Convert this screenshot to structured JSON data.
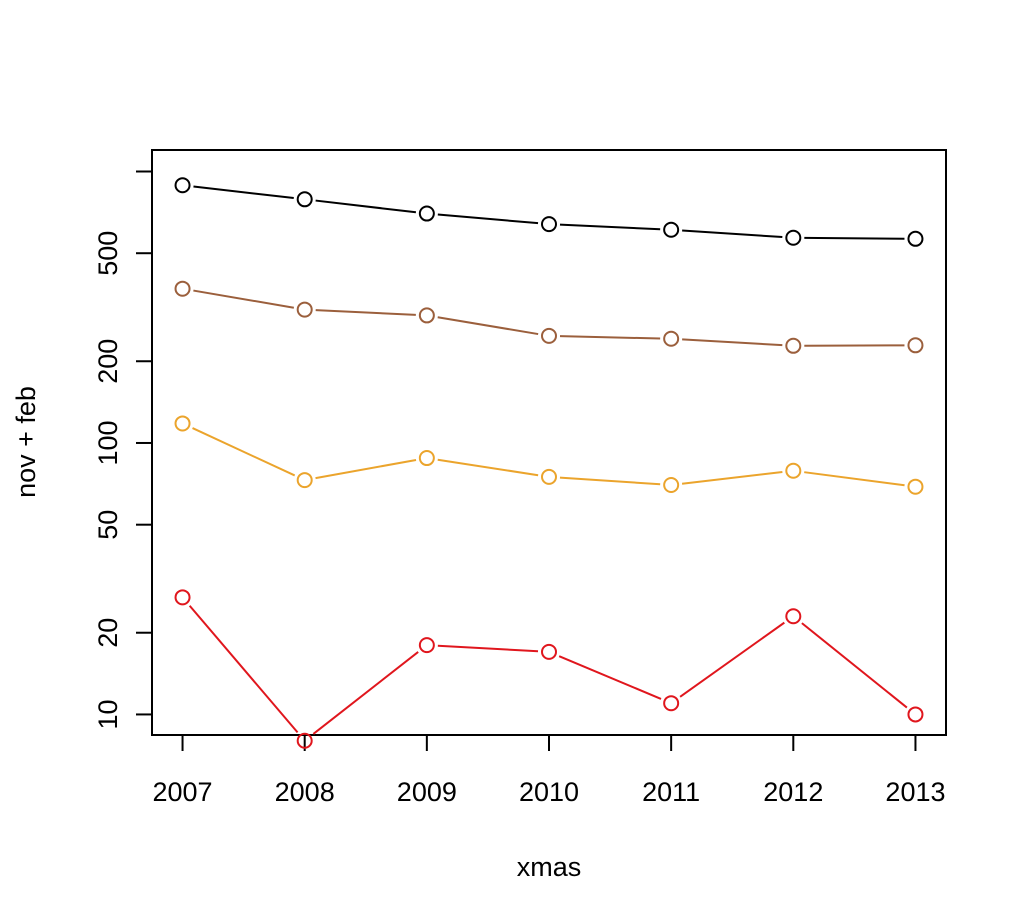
{
  "chart_data": {
    "type": "line",
    "title": "",
    "xlabel": "xmas",
    "ylabel": "nov + feb",
    "y_scale": "log",
    "xlim": [
      2006.75,
      2013.25
    ],
    "ylim": [
      8.4,
      1200
    ],
    "x": [
      2007,
      2008,
      2009,
      2010,
      2011,
      2012,
      2013
    ],
    "x_ticks": [
      "2007",
      "2008",
      "2009",
      "2010",
      "2011",
      "2012",
      "2013"
    ],
    "y_ticks": [
      10,
      20,
      50,
      100,
      200,
      500
    ],
    "y_tick_labels": [
      "10",
      "20",
      "50",
      "100",
      "200",
      "500"
    ],
    "grid": false,
    "legend": "none",
    "marker": "open-circle",
    "series": [
      {
        "color": "#000000",
        "values": [
          890,
          790,
          700,
          640,
          610,
          570,
          565
        ]
      },
      {
        "color": "#9b5f3c",
        "values": [
          370,
          310,
          295,
          248,
          242,
          228,
          229
        ]
      },
      {
        "color": "#eba42c",
        "values": [
          118,
          73,
          88,
          75,
          70,
          79,
          69
        ]
      },
      {
        "color": "#e0161d",
        "values": [
          27,
          8,
          18,
          17,
          11,
          23,
          10
        ]
      }
    ]
  }
}
